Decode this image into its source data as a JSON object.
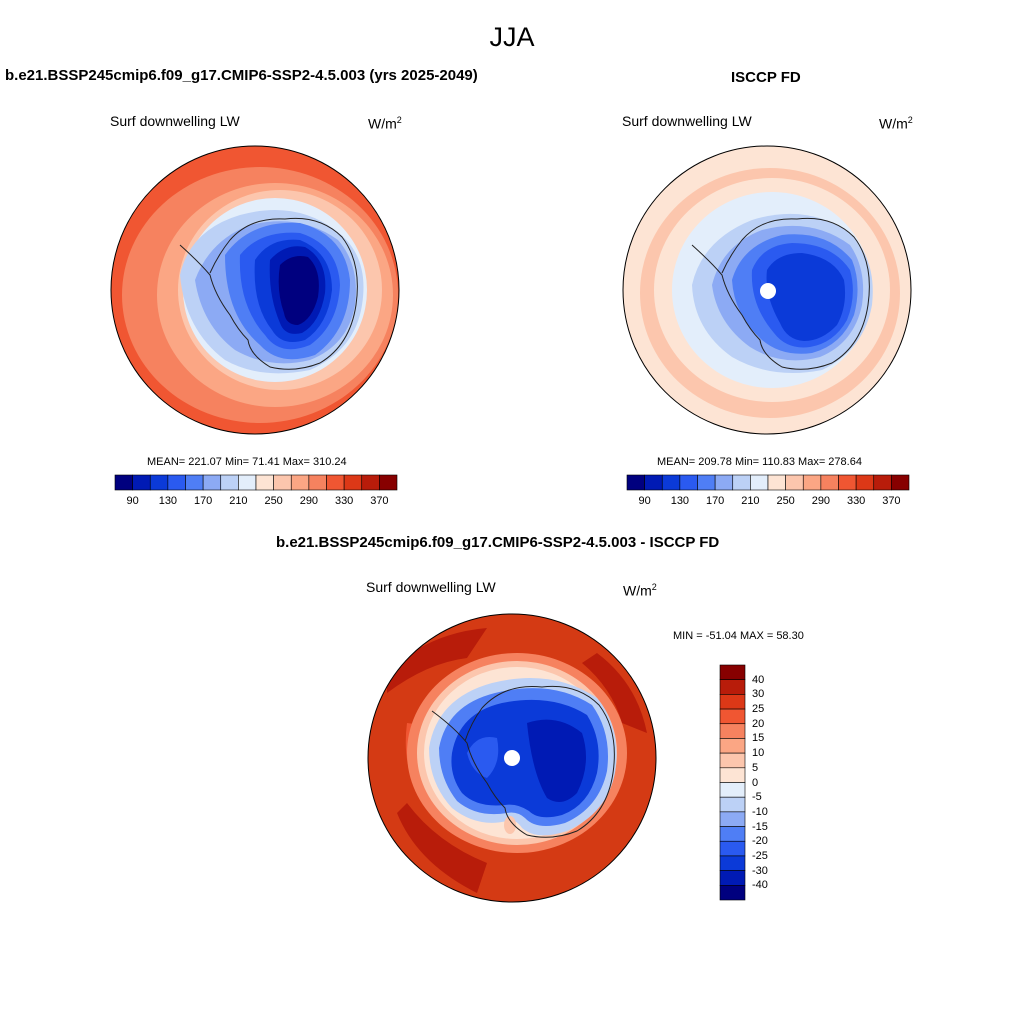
{
  "page_title": "JJA",
  "left_panel": {
    "title": "b.e21.BSSP245cmip6.f09_g17.CMIP6-SSP2-4.5.003 (yrs 2025-2049)",
    "variable": "Surf downwelling LW",
    "units_base": "W/m",
    "units_exp": "2",
    "stats": "MEAN= 221.07  Min=  71.41  Max= 310.24",
    "fill_color": "#ff6a3c"
  },
  "right_panel": {
    "title": "ISCCP FD",
    "variable": "Surf downwelling LW",
    "units_base": "W/m",
    "units_exp": "2",
    "stats": "MEAN= 209.78  Min= 110.83  Max= 278.64",
    "fill_color": "#fcc6ad"
  },
  "diff_panel": {
    "title": "b.e21.BSSP245cmip6.f09_g17.CMIP6-SSP2-4.5.003 - ISCCP FD",
    "variable": "Surf downwelling LW",
    "units_base": "W/m",
    "units_exp": "2",
    "minmax": "MIN = -51.04 MAX =  58.30",
    "fill_color": "#d43a14"
  },
  "abs_colorbar": {
    "colors": [
      "#00007f",
      "#001ab4",
      "#0b3ad8",
      "#2a5af0",
      "#4f7ef5",
      "#8caaf4",
      "#bcd1f6",
      "#e3eefb",
      "#fde4d4",
      "#fcc6ad",
      "#fba684",
      "#f6825f",
      "#f05632",
      "#dc3817",
      "#b81c0a",
      "#870000"
    ],
    "tick_labels": [
      "90",
      "130",
      "170",
      "210",
      "250",
      "290",
      "330",
      "370"
    ]
  },
  "diff_colorbar": {
    "colors": [
      "#870000",
      "#b81c0a",
      "#dc3817",
      "#f05632",
      "#f6825f",
      "#fba684",
      "#fcc6ad",
      "#fde4d4",
      "#e3eefb",
      "#bcd1f6",
      "#8caaf4",
      "#4f7ef5",
      "#2a5af0",
      "#0b3ad8",
      "#001ab4",
      "#00007f"
    ],
    "tick_labels": [
      "40",
      "30",
      "25",
      "20",
      "15",
      "10",
      "5",
      "0",
      "-5",
      "-10",
      "-15",
      "-20",
      "-25",
      "-30",
      "-40"
    ]
  },
  "map_colors": {
    "ocean_outer": "#ff6a3c",
    "diff_ocean": "#d43a14",
    "coast": "#222222",
    "continent_deep": "#00007f",
    "continent_mid": "#0b3ad8",
    "continent_light": "#8caaf4",
    "transition": "#e3eefb"
  }
}
